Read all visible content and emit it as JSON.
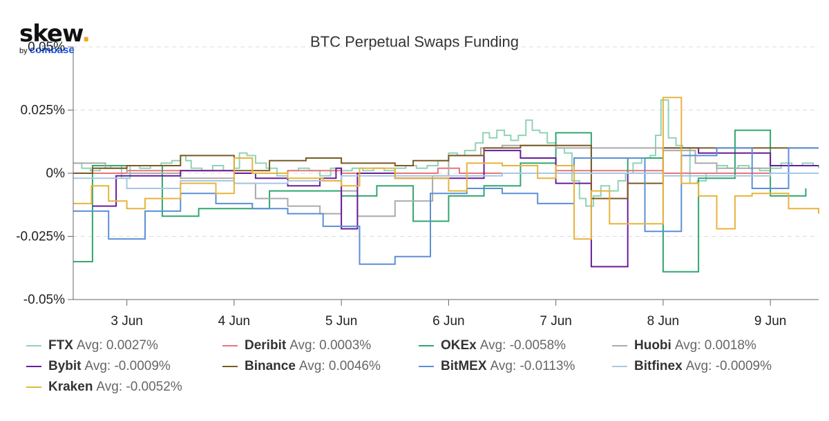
{
  "logo": {
    "word": "skew",
    "dot": ".",
    "by": "by",
    "brand": "coinbase"
  },
  "chart_data": {
    "type": "line",
    "title": "BTC Perpetual Swaps Funding",
    "xlabel": "",
    "ylabel": "",
    "ylim": [
      -0.05,
      0.05
    ],
    "xlim": [
      2.5,
      9.45
    ],
    "y_ticks": [
      -0.05,
      -0.025,
      0,
      0.025,
      0.05
    ],
    "y_tick_labels": [
      "-0.05%",
      "-0.025%",
      "0%",
      "0.025%",
      "0.05%"
    ],
    "x_ticks": [
      3,
      4,
      5,
      6,
      7,
      8,
      9
    ],
    "x_tick_labels": [
      "3 Jun",
      "4 Jun",
      "5 Jun",
      "6 Jun",
      "7 Jun",
      "8 Jun",
      "9 Jun"
    ],
    "x_unit": "day of June",
    "grid": "horizontal dashed",
    "legend_position": "bottom",
    "series": [
      {
        "name": "FTX",
        "avg": "Avg: 0.0027%",
        "color": "#8fd3b5",
        "step": true,
        "points": [
          [
            2.5,
            0.004
          ],
          [
            2.58,
            0.002
          ],
          [
            2.66,
            0.001
          ],
          [
            2.75,
            0.002
          ],
          [
            2.85,
            0.003
          ],
          [
            2.95,
            -0.002
          ],
          [
            3.03,
            0.003
          ],
          [
            3.12,
            0.002
          ],
          [
            3.22,
            0.003
          ],
          [
            3.32,
            0.004
          ],
          [
            3.42,
            0.005
          ],
          [
            3.5,
            0.007
          ],
          [
            3.55,
            0.005
          ],
          [
            3.6,
            0.002
          ],
          [
            3.7,
            0.001
          ],
          [
            3.8,
            0.003
          ],
          [
            3.9,
            0.001
          ],
          [
            4.0,
            0.002
          ],
          [
            4.05,
            0.008
          ],
          [
            4.12,
            0.007
          ],
          [
            4.2,
            0.004
          ],
          [
            4.3,
            0.002
          ],
          [
            4.4,
            -0.001
          ],
          [
            4.5,
            0.001
          ],
          [
            4.6,
            0.002
          ],
          [
            4.7,
            0.001
          ],
          [
            4.8,
            -0.001
          ],
          [
            4.9,
            0.002
          ],
          [
            5.0,
            0.001
          ],
          [
            5.1,
            0.002
          ],
          [
            5.2,
            0.001
          ],
          [
            5.3,
            0.002
          ],
          [
            5.4,
            0.001
          ],
          [
            5.5,
            0.002
          ],
          [
            5.6,
            0.003
          ],
          [
            5.7,
            0.002
          ],
          [
            5.8,
            0.003
          ],
          [
            5.9,
            0.005
          ],
          [
            6.0,
            0.008
          ],
          [
            6.08,
            0.007
          ],
          [
            6.15,
            0.009
          ],
          [
            6.25,
            0.012
          ],
          [
            6.32,
            0.016
          ],
          [
            6.38,
            0.014
          ],
          [
            6.45,
            0.017
          ],
          [
            6.52,
            0.015
          ],
          [
            6.58,
            0.013
          ],
          [
            6.65,
            0.015
          ],
          [
            6.72,
            0.021
          ],
          [
            6.78,
            0.017
          ],
          [
            6.85,
            0.016
          ],
          [
            6.92,
            0.012
          ],
          [
            7.0,
            0.01
          ],
          [
            7.08,
            0.008
          ],
          [
            7.15,
            -0.003
          ],
          [
            7.22,
            -0.01
          ],
          [
            7.28,
            -0.013
          ],
          [
            7.35,
            -0.009
          ],
          [
            7.42,
            -0.005
          ],
          [
            7.5,
            -0.007
          ],
          [
            7.58,
            -0.003
          ],
          [
            7.65,
            0.0
          ],
          [
            7.72,
            0.004
          ],
          [
            7.8,
            0.006
          ],
          [
            7.88,
            0.007
          ],
          [
            7.93,
            0.015
          ],
          [
            7.98,
            0.029
          ],
          [
            8.05,
            0.014
          ],
          [
            8.12,
            0.011
          ],
          [
            8.18,
            0.01
          ],
          [
            8.25,
            -0.004
          ],
          [
            8.32,
            -0.003
          ],
          [
            8.4,
            0.0
          ],
          [
            8.5,
            0.003
          ],
          [
            8.6,
            0.002
          ],
          [
            8.7,
            0.003
          ],
          [
            8.8,
            0.002
          ],
          [
            8.9,
            0.001
          ],
          [
            9.0,
            0.002
          ],
          [
            9.1,
            0.004
          ],
          [
            9.2,
            0.003
          ],
          [
            9.3,
            0.004
          ],
          [
            9.4,
            0.003
          ],
          [
            9.45,
            0.002
          ]
        ]
      },
      {
        "name": "Deribit",
        "avg": "Avg: 0.0003%",
        "color": "#e8757a",
        "step": true,
        "points": [
          [
            2.5,
            0.0
          ],
          [
            3.0,
            0.001
          ],
          [
            4.0,
            0.0
          ],
          [
            4.5,
            0.001
          ],
          [
            5.0,
            0.0
          ],
          [
            5.9,
            0.002
          ],
          [
            6.1,
            0.0
          ],
          [
            7.0,
            0.001
          ],
          [
            8.0,
            0.0
          ],
          [
            9.45,
            0.0
          ]
        ]
      },
      {
        "name": "OKEx",
        "avg": "Avg: -0.0058%",
        "color": "#30a66e",
        "step": true,
        "points": [
          [
            2.5,
            -0.035
          ],
          [
            2.68,
            -0.035
          ],
          [
            2.68,
            0.003
          ],
          [
            3.33,
            -0.017
          ],
          [
            3.67,
            -0.014
          ],
          [
            4.0,
            -0.014
          ],
          [
            4.33,
            -0.007
          ],
          [
            5.0,
            -0.009
          ],
          [
            5.33,
            -0.009
          ],
          [
            5.33,
            -0.005
          ],
          [
            5.67,
            -0.005
          ],
          [
            5.67,
            -0.019
          ],
          [
            6.0,
            -0.009
          ],
          [
            6.33,
            -0.005
          ],
          [
            6.67,
            0.004
          ],
          [
            7.0,
            0.016
          ],
          [
            7.33,
            0.0
          ],
          [
            7.67,
            0.006
          ],
          [
            8.0,
            -0.039
          ],
          [
            8.33,
            -0.002
          ],
          [
            8.67,
            0.017
          ],
          [
            9.0,
            -0.009
          ],
          [
            9.33,
            -0.006
          ]
        ]
      },
      {
        "name": "Huobi",
        "avg": "Avg: 0.0018%",
        "color": "#aaaaaa",
        "step": true,
        "points": [
          [
            2.5,
            0.004
          ],
          [
            2.8,
            0.002
          ],
          [
            3.0,
            0.0
          ],
          [
            3.5,
            -0.002
          ],
          [
            4.0,
            -0.004
          ],
          [
            4.2,
            -0.01
          ],
          [
            4.5,
            -0.013
          ],
          [
            4.8,
            -0.016
          ],
          [
            5.0,
            -0.007
          ],
          [
            5.15,
            -0.017
          ],
          [
            5.5,
            -0.011
          ],
          [
            5.85,
            -0.001
          ],
          [
            6.0,
            0.007
          ],
          [
            6.3,
            0.01
          ],
          [
            6.5,
            0.011
          ],
          [
            7.0,
            0.01
          ],
          [
            8.0,
            0.009
          ],
          [
            8.3,
            0.004
          ],
          [
            8.5,
            0.002
          ],
          [
            9.0,
            0.002
          ]
        ]
      },
      {
        "name": "Bybit",
        "avg": "Avg: -0.0009%",
        "color": "#6a1b9a",
        "step": true,
        "points": [
          [
            2.68,
            -0.013
          ],
          [
            2.9,
            -0.001
          ],
          [
            3.5,
            0.001
          ],
          [
            4.0,
            0.0
          ],
          [
            4.2,
            -0.002
          ],
          [
            4.5,
            -0.005
          ],
          [
            4.8,
            -0.002
          ],
          [
            4.95,
            0.002
          ],
          [
            5.0,
            -0.022
          ],
          [
            5.15,
            -0.022
          ],
          [
            5.15,
            0.0
          ],
          [
            5.5,
            -0.002
          ],
          [
            6.0,
            -0.002
          ],
          [
            6.33,
            0.009
          ],
          [
            6.67,
            0.006
          ],
          [
            7.0,
            -0.004
          ],
          [
            7.33,
            -0.037
          ],
          [
            7.67,
            -0.0
          ],
          [
            8.0,
            0.01
          ],
          [
            8.33,
            0.008
          ],
          [
            9.0,
            0.003
          ],
          [
            9.45,
            0.003
          ]
        ]
      },
      {
        "name": "Binance",
        "avg": "Avg: 0.0046%",
        "color": "#7a5a22",
        "step": true,
        "points": [
          [
            2.5,
            0.0
          ],
          [
            2.68,
            0.002
          ],
          [
            3.0,
            0.003
          ],
          [
            3.5,
            0.007
          ],
          [
            4.0,
            0.001
          ],
          [
            4.33,
            0.005
          ],
          [
            4.67,
            0.006
          ],
          [
            5.0,
            0.004
          ],
          [
            5.5,
            0.003
          ],
          [
            5.67,
            0.005
          ],
          [
            6.0,
            0.007
          ],
          [
            6.33,
            0.01
          ],
          [
            6.67,
            0.011
          ],
          [
            7.0,
            0.011
          ],
          [
            7.33,
            -0.01
          ],
          [
            7.67,
            -0.004
          ],
          [
            8.0,
            0.01
          ],
          [
            8.5,
            0.01
          ],
          [
            9.0,
            0.01
          ],
          [
            9.45,
            0.01
          ]
        ]
      },
      {
        "name": "BitMEX",
        "avg": "Avg: -0.0113%",
        "color": "#5b8fd6",
        "step": true,
        "points": [
          [
            2.5,
            -0.015
          ],
          [
            2.83,
            -0.026
          ],
          [
            3.17,
            -0.015
          ],
          [
            3.5,
            -0.008
          ],
          [
            3.83,
            -0.012
          ],
          [
            4.17,
            -0.014
          ],
          [
            4.5,
            -0.016
          ],
          [
            4.83,
            -0.021
          ],
          [
            5.17,
            -0.036
          ],
          [
            5.5,
            -0.033
          ],
          [
            5.83,
            -0.008
          ],
          [
            6.17,
            -0.006
          ],
          [
            6.5,
            -0.008
          ],
          [
            6.83,
            -0.012
          ],
          [
            7.17,
            0.006
          ],
          [
            7.5,
            0.006
          ],
          [
            7.83,
            -0.023
          ],
          [
            8.17,
            0.007
          ],
          [
            8.5,
            0.01
          ],
          [
            8.83,
            -0.006
          ],
          [
            9.17,
            0.01
          ],
          [
            9.45,
            0.01
          ]
        ]
      },
      {
        "name": "Bitfinex",
        "avg": "Avg: -0.0009%",
        "color": "#a7c7e2",
        "step": true,
        "points": [
          [
            2.5,
            -0.002
          ],
          [
            3.0,
            -0.006
          ],
          [
            3.5,
            -0.003
          ],
          [
            4.0,
            -0.004
          ],
          [
            4.5,
            -0.003
          ],
          [
            5.0,
            -0.001
          ],
          [
            5.5,
            -0.001
          ],
          [
            6.0,
            -0.001
          ],
          [
            6.5,
            0.0
          ],
          [
            7.0,
            0.0
          ],
          [
            7.5,
            0.0
          ],
          [
            8.0,
            -0.001
          ],
          [
            8.5,
            -0.001
          ],
          [
            9.0,
            0.0
          ],
          [
            9.45,
            0.0
          ]
        ]
      },
      {
        "name": "Kraken",
        "avg": "Avg: -0.0052%",
        "color": "#e8b33c",
        "step": true,
        "points": [
          [
            2.5,
            -0.012
          ],
          [
            2.67,
            -0.005
          ],
          [
            2.83,
            -0.011
          ],
          [
            3.0,
            -0.014
          ],
          [
            3.17,
            -0.01
          ],
          [
            3.5,
            -0.004
          ],
          [
            3.83,
            -0.008
          ],
          [
            4.0,
            0.006
          ],
          [
            4.17,
            0.0
          ],
          [
            4.5,
            -0.002
          ],
          [
            4.83,
            -0.003
          ],
          [
            5.0,
            -0.005
          ],
          [
            5.17,
            0.002
          ],
          [
            5.5,
            -0.002
          ],
          [
            6.0,
            -0.007
          ],
          [
            6.17,
            0.004
          ],
          [
            6.5,
            0.003
          ],
          [
            6.83,
            -0.002
          ],
          [
            7.0,
            0.003
          ],
          [
            7.17,
            -0.026
          ],
          [
            7.33,
            -0.007
          ],
          [
            7.5,
            -0.02
          ],
          [
            7.83,
            -0.02
          ],
          [
            8.0,
            0.03
          ],
          [
            8.17,
            -0.004
          ],
          [
            8.33,
            -0.009
          ],
          [
            8.5,
            -0.022
          ],
          [
            8.67,
            -0.009
          ],
          [
            8.83,
            -0.008
          ],
          [
            9.0,
            -0.008
          ],
          [
            9.17,
            -0.014
          ],
          [
            9.45,
            -0.016
          ]
        ]
      }
    ]
  }
}
